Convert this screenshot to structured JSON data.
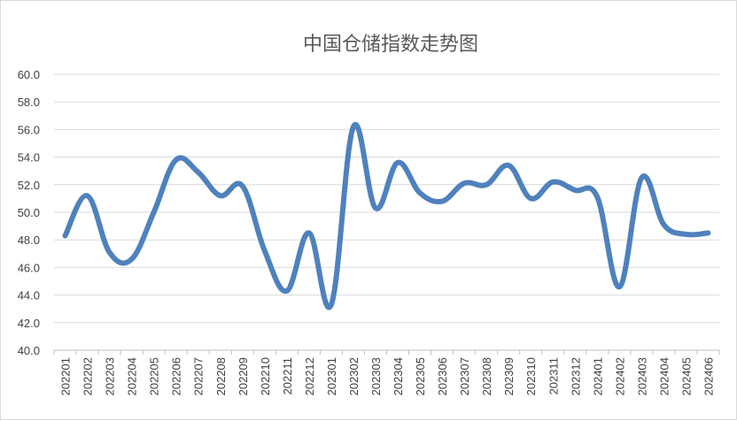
{
  "chart_data": {
    "type": "line",
    "title": "中国仓储指数走势图",
    "xlabel": "",
    "ylabel": "",
    "ylim": [
      40,
      60
    ],
    "y_ticks": [
      "40.0",
      "42.0",
      "44.0",
      "46.0",
      "48.0",
      "50.0",
      "52.0",
      "54.0",
      "56.0",
      "58.0",
      "60.0"
    ],
    "grid": true,
    "legend": "none",
    "line_color": "#4f81bd",
    "categories": [
      "202201",
      "202202",
      "202203",
      "202204",
      "202205",
      "202206",
      "202207",
      "202208",
      "202209",
      "202210",
      "202211",
      "202212",
      "202301",
      "202302",
      "202303",
      "202304",
      "202305",
      "202306",
      "202307",
      "202308",
      "202309",
      "202310",
      "202311",
      "202312",
      "202401",
      "202402",
      "202403",
      "202404",
      "202405",
      "202406"
    ],
    "series": [
      {
        "values": [
          48.3,
          51.2,
          47.1,
          46.6,
          50.0,
          53.8,
          52.9,
          51.2,
          51.9,
          47.2,
          44.3,
          48.5,
          43.3,
          56.2,
          50.3,
          53.6,
          51.4,
          50.8,
          52.1,
          52.0,
          53.4,
          51.0,
          52.2,
          51.6,
          51.1,
          44.6,
          52.5,
          49.1,
          48.4,
          48.5
        ]
      }
    ]
  }
}
